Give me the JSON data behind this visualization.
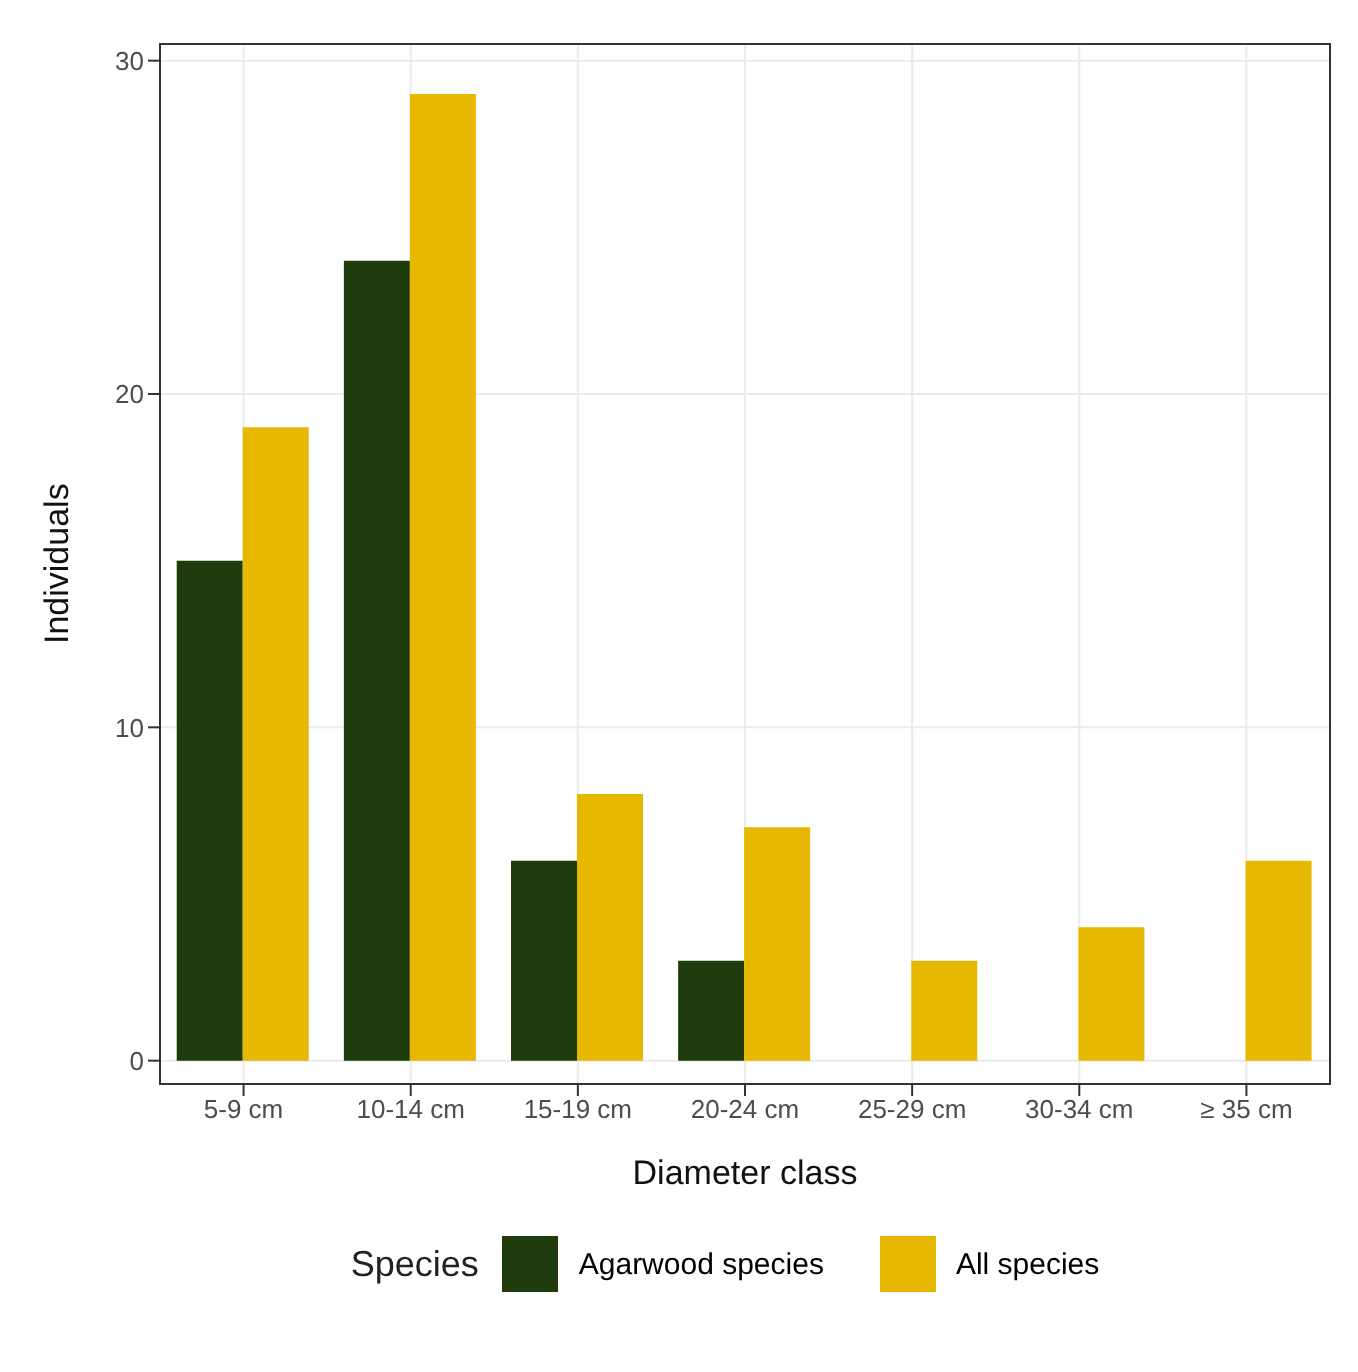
{
  "chart_data": {
    "type": "bar",
    "xlabel": "Diameter class",
    "ylabel": "Individuals",
    "legend_title": "Species",
    "categories": [
      "5-9 cm",
      "10-14 cm",
      "15-19 cm",
      "20-24 cm",
      "25-29 cm",
      "30-34 cm",
      "≥ 35 cm"
    ],
    "series": [
      {
        "name": "Agarwood species",
        "color": "#1f3d0c",
        "values": [
          15,
          24,
          6,
          3,
          0,
          0,
          0
        ]
      },
      {
        "name": "All species",
        "color": "#e6b800",
        "values": [
          19,
          29,
          8,
          7,
          3,
          4,
          6
        ]
      }
    ],
    "ylim": [
      -0.7,
      30.5
    ],
    "yticks": [
      0,
      10,
      20,
      30
    ],
    "grid": true,
    "legend": "bottom"
  }
}
